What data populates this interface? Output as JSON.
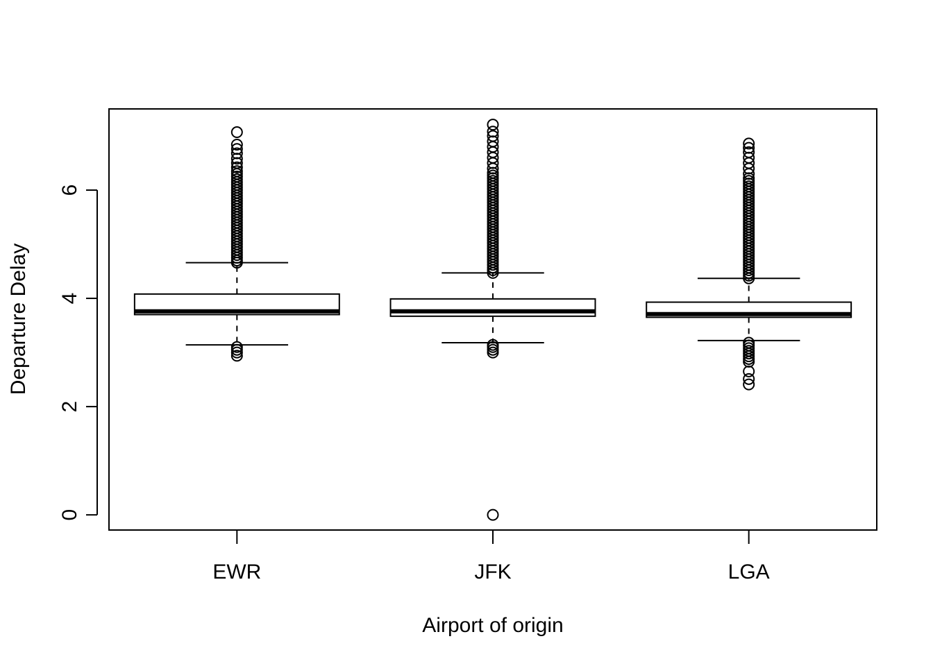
{
  "chart_data": {
    "type": "boxplot",
    "xlabel": "Airport of origin",
    "ylabel": "Departure Delay",
    "ylim": [
      -0.28,
      7.5
    ],
    "yticks": [
      0,
      2,
      4,
      6
    ],
    "grid": false,
    "categories": [
      "EWR",
      "JFK",
      "LGA"
    ],
    "boxes": [
      {
        "category": "EWR",
        "whisker_low": 3.14,
        "q1": 3.7,
        "median": 3.76,
        "q3": 4.08,
        "whisker_high": 4.66,
        "outliers_high": [
          4.66,
          4.7,
          4.75,
          4.8,
          4.85,
          4.9,
          4.95,
          5.0,
          5.05,
          5.1,
          5.15,
          5.2,
          5.25,
          5.3,
          5.35,
          5.4,
          5.45,
          5.5,
          5.55,
          5.6,
          5.65,
          5.7,
          5.75,
          5.8,
          5.85,
          5.9,
          5.95,
          6.0,
          6.05,
          6.1,
          6.15,
          6.2,
          6.25,
          6.3,
          6.35,
          6.42,
          6.5,
          6.58,
          6.68,
          6.76,
          6.84,
          7.07
        ],
        "outliers_low": [
          3.1,
          3.05,
          3.0,
          2.94
        ]
      },
      {
        "category": "JFK",
        "whisker_low": 3.18,
        "q1": 3.67,
        "median": 3.76,
        "q3": 3.99,
        "whisker_high": 4.47,
        "outliers_high": [
          4.47,
          4.52,
          4.57,
          4.62,
          4.67,
          4.72,
          4.77,
          4.82,
          4.87,
          4.92,
          4.97,
          5.02,
          5.07,
          5.12,
          5.17,
          5.22,
          5.27,
          5.32,
          5.37,
          5.42,
          5.47,
          5.52,
          5.57,
          5.62,
          5.67,
          5.72,
          5.77,
          5.82,
          5.87,
          5.92,
          5.97,
          6.02,
          6.07,
          6.12,
          6.17,
          6.22,
          6.27,
          6.32,
          6.4,
          6.5,
          6.6,
          6.7,
          6.8,
          6.9,
          7.0,
          7.08,
          7.21
        ],
        "outliers_low": [
          3.14,
          3.1,
          3.05,
          3.0,
          0.0
        ]
      },
      {
        "category": "LGA",
        "whisker_low": 3.22,
        "q1": 3.65,
        "median": 3.71,
        "q3": 3.93,
        "whisker_high": 4.37,
        "outliers_high": [
          4.37,
          4.42,
          4.47,
          4.52,
          4.57,
          4.62,
          4.67,
          4.72,
          4.77,
          4.82,
          4.87,
          4.92,
          4.97,
          5.02,
          5.07,
          5.12,
          5.17,
          5.22,
          5.27,
          5.32,
          5.37,
          5.42,
          5.47,
          5.52,
          5.57,
          5.62,
          5.67,
          5.72,
          5.77,
          5.82,
          5.87,
          5.92,
          5.97,
          6.02,
          6.07,
          6.12,
          6.17,
          6.22,
          6.3,
          6.4,
          6.5,
          6.6,
          6.7,
          6.78,
          6.86
        ],
        "outliers_low": [
          3.18,
          3.13,
          3.08,
          3.03,
          2.98,
          2.93,
          2.88,
          2.83,
          2.65,
          2.51,
          2.41
        ]
      }
    ]
  }
}
